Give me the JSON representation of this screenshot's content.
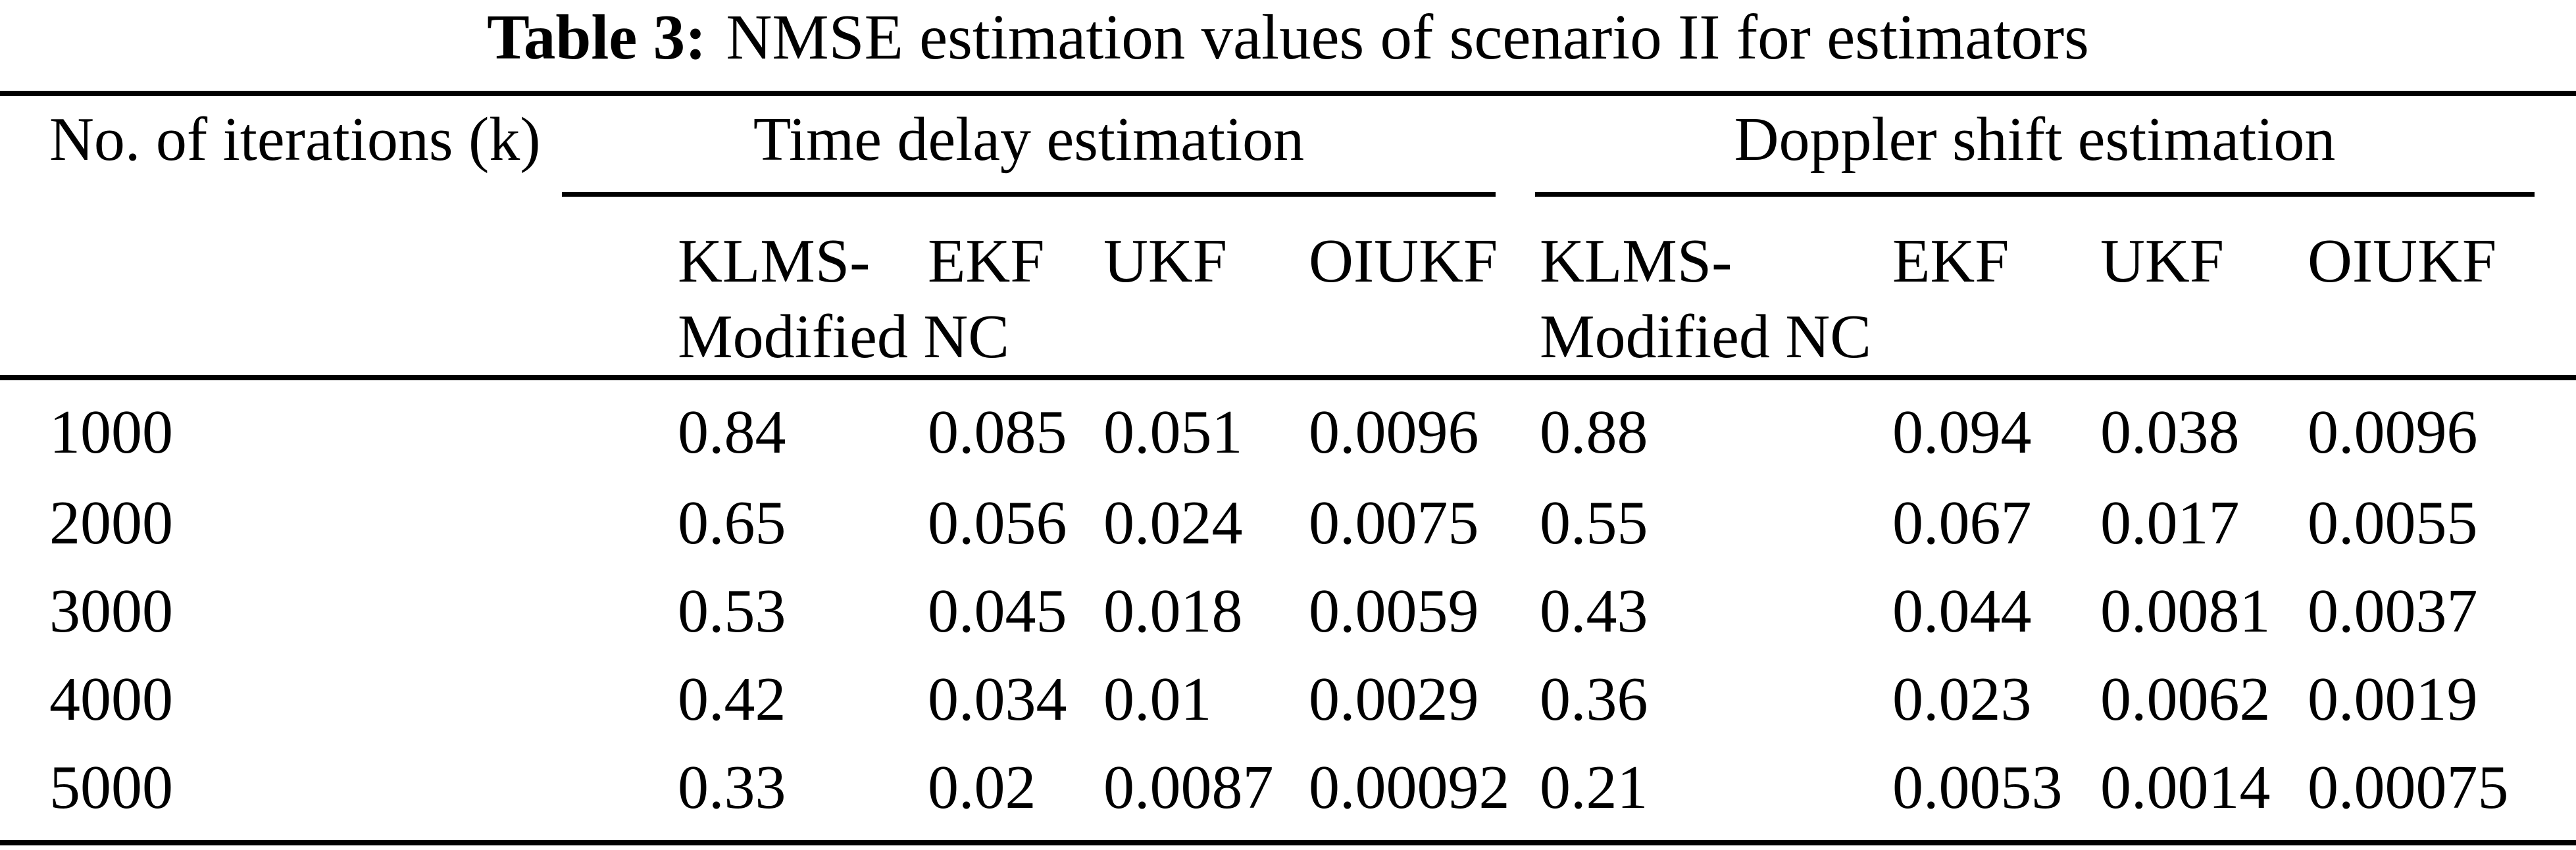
{
  "colors": {
    "background": "#ffffff",
    "text": "#000000",
    "rule": "#000000"
  },
  "title": {
    "prefix": "Table 3:",
    "text": "NMSE estimation values of scenario II for estimators"
  },
  "table": {
    "row_header": "No. of iterations (k)",
    "groups": [
      {
        "label": "Time delay estimation"
      },
      {
        "label": "Doppler shift estimation"
      }
    ],
    "sub_headers": [
      "KLMS-Modified NC",
      "EKF",
      "UKF",
      "OIUKF",
      "KLMS-Modified NC",
      "EKF",
      "UKF",
      "OIUKF"
    ],
    "rows": [
      {
        "k": "1000",
        "values": [
          "0.84",
          "0.085",
          "0.051",
          "0.0096",
          "0.88",
          "0.094",
          "0.038",
          "0.0096"
        ]
      },
      {
        "k": "2000",
        "values": [
          "0.65",
          "0.056",
          "0.024",
          "0.0075",
          "0.55",
          "0.067",
          "0.017",
          "0.0055"
        ]
      },
      {
        "k": "3000",
        "values": [
          "0.53",
          "0.045",
          "0.018",
          "0.0059",
          "0.43",
          "0.044",
          "0.0081",
          "0.0037"
        ]
      },
      {
        "k": "4000",
        "values": [
          "0.42",
          "0.034",
          "0.01",
          "0.0029",
          "0.36",
          "0.023",
          "0.0062",
          "0.0019"
        ]
      },
      {
        "k": "5000",
        "values": [
          "0.33",
          "0.02",
          "0.0087",
          "0.00092",
          "0.21",
          "0.0053",
          "0.0014",
          "0.00075"
        ]
      }
    ]
  }
}
